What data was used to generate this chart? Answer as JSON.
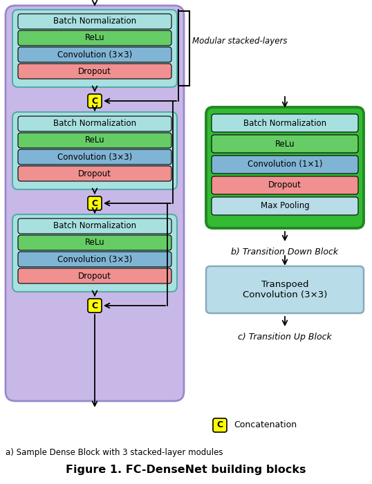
{
  "title": "Figure 1. FC-DenseNet building blocks",
  "subtitle_a": "a) Sample Dense Block with 3 stacked-layer modules",
  "label_modular": "Modular stacked-layers",
  "label_b": "b) Transition Down Block",
  "label_c": "c) Transition Up Block",
  "label_concat": "Concatenation",
  "colors": {
    "cyan_bg": "#a8e0e0",
    "green_bg": "#66cc66",
    "blue_bg": "#80b4d4",
    "red_bg": "#f09090",
    "light_blue_bg": "#b8dce8",
    "purple_outer": "#c8b8e8",
    "yellow": "#ffff00",
    "green_outer": "#33bb33",
    "white": "#ffffff"
  },
  "layer_labels": {
    "bn": "Batch Normalization",
    "relu": "ReLu",
    "conv33": "Convolution (3×3)",
    "dropout": "Dropout",
    "conv11": "Convolution (1×1)",
    "maxpool": "Max Pooling",
    "transpconv": "Transpoed\nConvolution (3×3)",
    "C": "C"
  }
}
